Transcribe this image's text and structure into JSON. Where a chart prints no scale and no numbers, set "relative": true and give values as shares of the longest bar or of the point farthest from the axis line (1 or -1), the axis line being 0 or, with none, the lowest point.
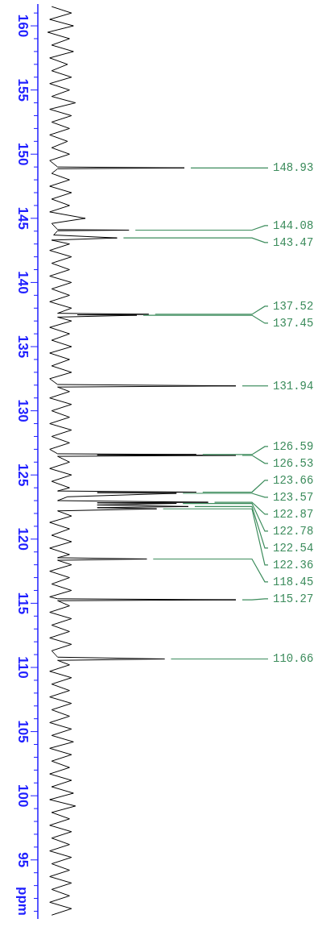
{
  "chart_data": {
    "type": "line",
    "orientation": "horizontal",
    "relative": true,
    "ylabel": "ppm",
    "color": "#000000",
    "ylim": [
      90.4,
      161.7
    ],
    "yticks": [
      95,
      100,
      105,
      110,
      115,
      120,
      125,
      130,
      135,
      140,
      145,
      150,
      155,
      160,
      {
        "value": 91,
        "label": null
      },
      {
        "value": 92,
        "label": null
      },
      {
        "value": 93,
        "label": null
      },
      {
        "value": 94,
        "label": null
      },
      {
        "value": 96,
        "label": null
      },
      {
        "value": 97,
        "label": null
      },
      {
        "value": 98,
        "label": null
      },
      {
        "value": 99,
        "label": null
      },
      {
        "value": 101,
        "label": null
      },
      {
        "value": 102,
        "label": null
      },
      {
        "value": 103,
        "label": null
      },
      {
        "value": 104,
        "label": null
      },
      {
        "value": 106,
        "label": null
      },
      {
        "value": 107,
        "label": null
      },
      {
        "value": 108,
        "label": null
      },
      {
        "value": 109,
        "label": null
      },
      {
        "value": 111,
        "label": null
      },
      {
        "value": 112,
        "label": null
      },
      {
        "value": 113,
        "label": null
      },
      {
        "value": 114,
        "label": null
      },
      {
        "value": 116,
        "label": null
      },
      {
        "value": 117,
        "label": null
      },
      {
        "value": 118,
        "label": null
      },
      {
        "value": 119,
        "label": null
      },
      {
        "value": 121,
        "label": null
      },
      {
        "value": 122,
        "label": null
      },
      {
        "value": 123,
        "label": null
      },
      {
        "value": 124,
        "label": null
      },
      {
        "value": 126,
        "label": null
      },
      {
        "value": 127,
        "label": null
      },
      {
        "value": 128,
        "label": null
      },
      {
        "value": 129,
        "label": null
      },
      {
        "value": 131,
        "label": null
      },
      {
        "value": 132,
        "label": null
      },
      {
        "value": 133,
        "label": null
      },
      {
        "value": 134,
        "label": null
      },
      {
        "value": 136,
        "label": null
      },
      {
        "value": 137,
        "label": null
      },
      {
        "value": 138,
        "label": null
      },
      {
        "value": 139,
        "label": null
      },
      {
        "value": 141,
        "label": null
      },
      {
        "value": 142,
        "label": null
      },
      {
        "value": 143,
        "label": null
      },
      {
        "value": 144,
        "label": null
      },
      {
        "value": 146,
        "label": null
      },
      {
        "value": 147,
        "label": null
      },
      {
        "value": 148,
        "label": null
      },
      {
        "value": 149,
        "label": null
      },
      {
        "value": 151,
        "label": null
      },
      {
        "value": 152,
        "label": null
      },
      {
        "value": 153,
        "label": null
      },
      {
        "value": 154,
        "label": null
      },
      {
        "value": 156,
        "label": null
      },
      {
        "value": 157,
        "label": null
      },
      {
        "value": 158,
        "label": null
      },
      {
        "value": 159,
        "label": null
      },
      {
        "value": 161,
        "label": null
      }
    ],
    "x": [
      161.5,
      161,
      160.5,
      160,
      159.5,
      159,
      158.5,
      158,
      157.5,
      157,
      156.5,
      156,
      155.5,
      155,
      154.5,
      154,
      153.5,
      153,
      152.5,
      152,
      151.5,
      151,
      150.5,
      150,
      149.5,
      149.0,
      148.93,
      148.86,
      148.5,
      148,
      147.5,
      147,
      146.5,
      146,
      145.5,
      145.0,
      144.6,
      144.12,
      144.08,
      144.03,
      143.7,
      143.47,
      143.3,
      143,
      142.5,
      142,
      141.5,
      141,
      140.5,
      140,
      139.5,
      139,
      138.5,
      138,
      137.6,
      137.52,
      137.48,
      137.45,
      137.3,
      137,
      136.5,
      136,
      135.5,
      135,
      134.5,
      134,
      133.5,
      133,
      132.5,
      132.05,
      131.94,
      131.85,
      131.5,
      131,
      130.5,
      130,
      129.5,
      129,
      128.5,
      128,
      127.5,
      127,
      126.65,
      126.59,
      126.56,
      126.53,
      126.45,
      126,
      125.5,
      125,
      124.5,
      124,
      123.75,
      123.66,
      123.62,
      123.57,
      123.3,
      123.0,
      122.87,
      122.83,
      122.78,
      122.66,
      122.54,
      122.45,
      122.36,
      122.2,
      121.8,
      121.3,
      120.8,
      120.3,
      119.8,
      119.3,
      118.8,
      118.55,
      118.45,
      118.35,
      118,
      117.5,
      117,
      116.5,
      116,
      115.5,
      115.35,
      115.27,
      115.2,
      114.8,
      114.3,
      113.8,
      113.3,
      112.8,
      112.3,
      111.8,
      111.3,
      110.8,
      110.66,
      110.55,
      110.2,
      109.7,
      109.2,
      108.7,
      108.2,
      107.7,
      107.2,
      106.7,
      106.2,
      105.7,
      105.2,
      104.7,
      104.2,
      103.7,
      103.2,
      102.7,
      102.2,
      101.7,
      101.2,
      100.7,
      100.2,
      99.7,
      99.2,
      98.7,
      98.2,
      97.7,
      97.2,
      96.7,
      96.2,
      95.7,
      95.2,
      94.7,
      94.2,
      93.7,
      93.2,
      92.7,
      92.2,
      91.7,
      91.2,
      90.7
    ],
    "values": [
      0.07,
      0.17,
      0.06,
      0.18,
      0.05,
      0.16,
      0.07,
      0.18,
      0.06,
      0.15,
      0.07,
      0.17,
      0.06,
      0.16,
      0.07,
      0.19,
      0.06,
      0.17,
      0.07,
      0.16,
      0.06,
      0.15,
      0.07,
      0.16,
      0.06,
      0.1,
      0.74,
      0.1,
      0.07,
      0.16,
      0.06,
      0.17,
      0.07,
      0.16,
      0.06,
      0.24,
      0.07,
      0.1,
      0.46,
      0.1,
      0.08,
      0.4,
      0.07,
      0.16,
      0.06,
      0.17,
      0.07,
      0.16,
      0.06,
      0.17,
      0.07,
      0.16,
      0.06,
      0.17,
      0.1,
      0.56,
      0.2,
      0.5,
      0.1,
      0.17,
      0.06,
      0.16,
      0.07,
      0.17,
      0.06,
      0.16,
      0.07,
      0.17,
      0.06,
      0.1,
      1.0,
      0.1,
      0.16,
      0.06,
      0.17,
      0.07,
      0.16,
      0.06,
      0.17,
      0.07,
      0.16,
      0.06,
      0.1,
      0.8,
      0.3,
      1.0,
      0.1,
      0.16,
      0.06,
      0.17,
      0.07,
      0.16,
      0.1,
      0.8,
      0.3,
      0.7,
      0.15,
      0.1,
      0.86,
      0.3,
      0.7,
      0.3,
      0.76,
      0.3,
      0.6,
      0.1,
      0.17,
      0.06,
      0.16,
      0.07,
      0.17,
      0.06,
      0.16,
      0.1,
      0.55,
      0.1,
      0.17,
      0.06,
      0.16,
      0.07,
      0.17,
      0.06,
      0.1,
      1.0,
      0.1,
      0.16,
      0.06,
      0.17,
      0.07,
      0.16,
      0.06,
      0.17,
      0.07,
      0.1,
      0.64,
      0.1,
      0.16,
      0.06,
      0.17,
      0.07,
      0.16,
      0.06,
      0.17,
      0.07,
      0.16,
      0.06,
      0.17,
      0.07,
      0.18,
      0.06,
      0.17,
      0.07,
      0.16,
      0.06,
      0.17,
      0.07,
      0.18,
      0.06,
      0.19,
      0.07,
      0.16,
      0.06,
      0.17,
      0.07,
      0.16,
      0.06,
      0.17,
      0.07,
      0.16,
      0.06,
      0.17,
      0.07,
      0.16,
      0.06,
      0.17,
      0.07
    ],
    "annotations": [
      {
        "text": "148.93",
        "x": 0.74,
        "y": 148.93
      },
      {
        "text": "144.08",
        "x": 0.46,
        "y": 144.08
      },
      {
        "text": "143.47",
        "x": 0.4,
        "y": 143.47
      },
      {
        "text": "137.52",
        "x": 0.56,
        "y": 137.52
      },
      {
        "text": "137.45",
        "x": 0.5,
        "y": 137.45
      },
      {
        "text": "131.94",
        "x": 1.0,
        "y": 131.94
      },
      {
        "text": "126.59",
        "x": 0.8,
        "y": 126.59
      },
      {
        "text": "126.53",
        "x": 1.0,
        "y": 126.53
      },
      {
        "text": "123.66",
        "x": 0.8,
        "y": 123.66
      },
      {
        "text": "123.57",
        "x": 0.7,
        "y": 123.57
      },
      {
        "text": "122.87",
        "x": 0.86,
        "y": 122.87
      },
      {
        "text": "122.78",
        "x": 0.7,
        "y": 122.78
      },
      {
        "text": "122.54",
        "x": 0.76,
        "y": 122.54
      },
      {
        "text": "122.36",
        "x": 0.6,
        "y": 122.36
      },
      {
        "text": "118.45",
        "x": 0.55,
        "y": 118.45
      },
      {
        "text": "115.27",
        "x": 1.0,
        "y": 115.27
      },
      {
        "text": "110.66",
        "x": 0.64,
        "y": 110.66
      }
    ]
  }
}
